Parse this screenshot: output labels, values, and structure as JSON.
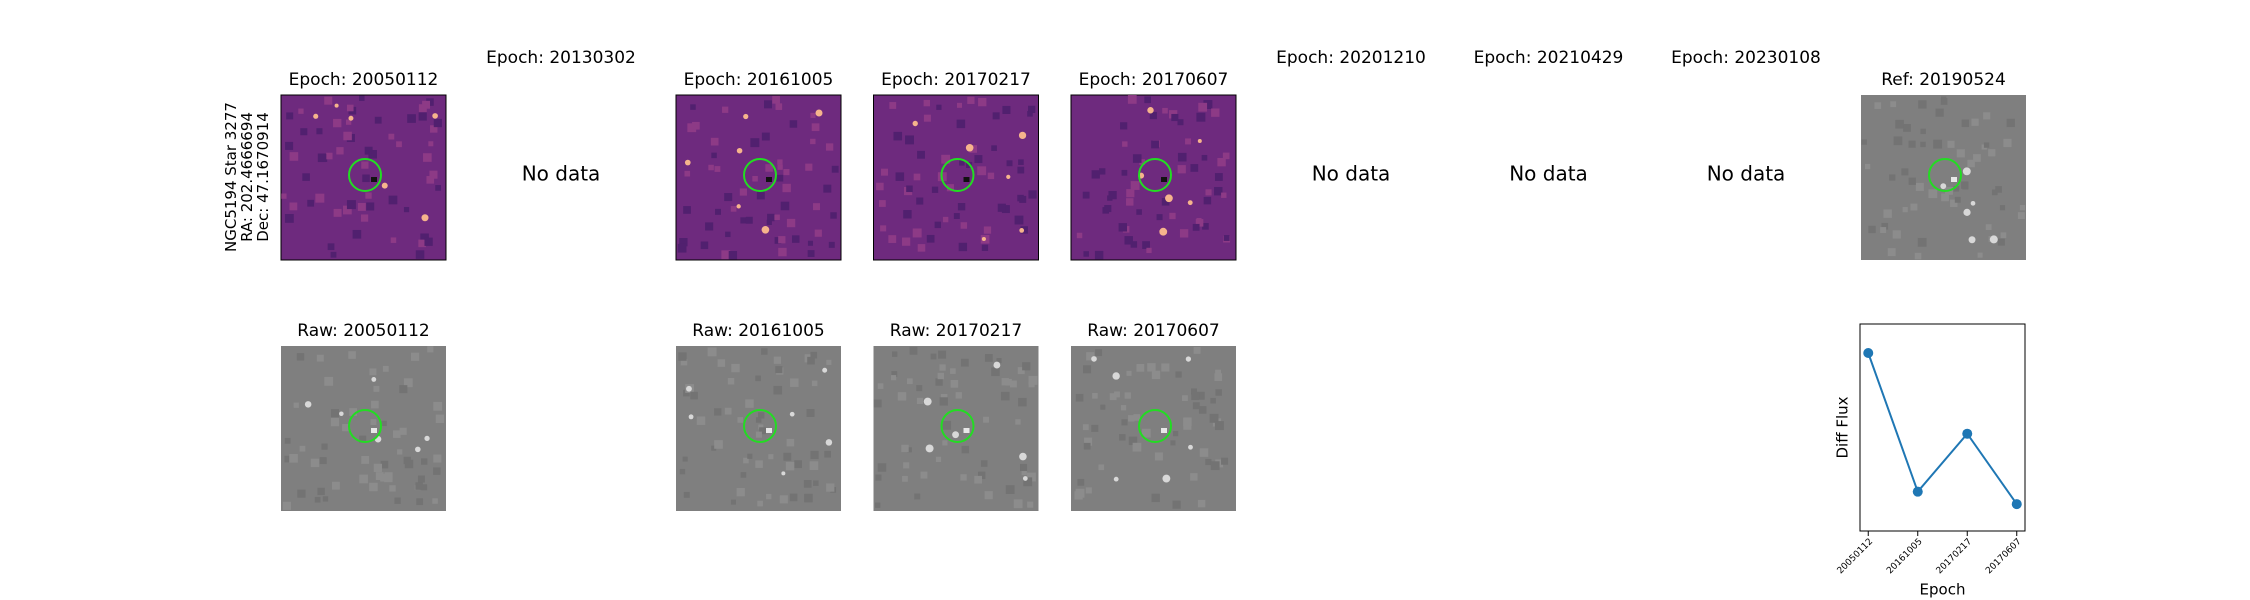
{
  "target": {
    "lines": [
      "NGC5194 Star 3277",
      "RA: 202.4666694",
      "Dec: 47.1670914"
    ]
  },
  "panels": [
    {
      "title": "Epoch: 20050112",
      "raw_title": "Raw: 20050112"
    },
    {
      "title": "Epoch: 20130302",
      "status": "No data"
    },
    {
      "title": "Epoch: 20161005",
      "raw_title": "Raw: 20161005"
    },
    {
      "title": "Epoch: 20170217",
      "raw_title": "Raw: 20170217"
    },
    {
      "title": "Epoch: 20170607",
      "raw_title": "Raw: 20170607"
    },
    {
      "title": "Epoch: 20201210",
      "status": "No data"
    },
    {
      "title": "Epoch: 20210429",
      "status": "No data"
    },
    {
      "title": "Epoch: 20230108",
      "status": "No data"
    }
  ],
  "reference": {
    "title": "Ref: 20190524"
  },
  "chart_data": {
    "type": "line",
    "categories": [
      "20050112",
      "20161005",
      "20170217",
      "20170607"
    ],
    "values": [
      0.86,
      0.19,
      0.47,
      0.13
    ],
    "ylim": [
      0,
      1
    ],
    "xlabel": "Epoch",
    "ylabel": "Diff Flux",
    "color": "#1f77b4"
  }
}
